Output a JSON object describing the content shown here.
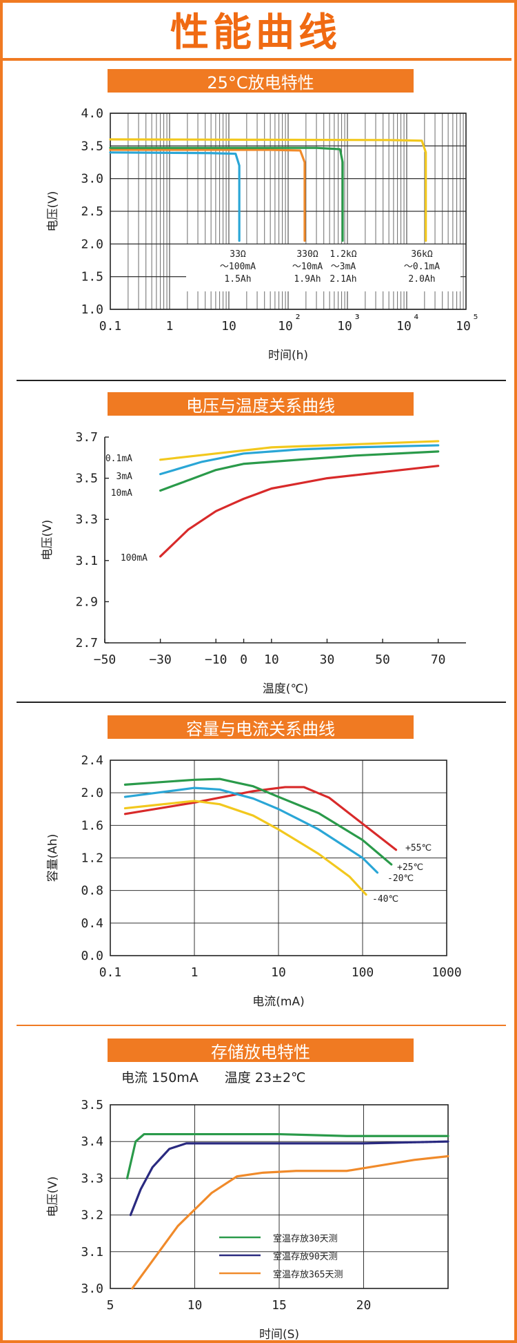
{
  "page": {
    "title": "性能曲线"
  },
  "chart_data": [
    {
      "type": "line",
      "title": "25°C放电特性",
      "xlabel": "时间(h)",
      "ylabel": "电压(V)",
      "xscale": "log",
      "xlim": [
        0.1,
        100000
      ],
      "ylim": [
        1.0,
        4.0
      ],
      "x_ticks": [
        "0.1",
        "1",
        "10",
        "10²",
        "10³",
        "10⁴",
        "10⁵"
      ],
      "y_ticks": [
        "1.0",
        "1.5",
        "2.0",
        "2.5",
        "3.0",
        "3.5",
        "4.0"
      ],
      "grid": true,
      "series": [
        {
          "color": "#2aa6d6",
          "x": [
            0.1,
            5,
            13,
            15,
            15
          ],
          "y": [
            3.4,
            3.39,
            3.38,
            3.2,
            2.05
          ]
        },
        {
          "color": "#f08a2a",
          "x": [
            0.1,
            50,
            160,
            190,
            190
          ],
          "y": [
            3.44,
            3.44,
            3.43,
            3.25,
            2.05
          ]
        },
        {
          "color": "#2a9a4a",
          "x": [
            0.1,
            300,
            750,
            830,
            830
          ],
          "y": [
            3.47,
            3.47,
            3.45,
            3.25,
            2.05
          ]
        },
        {
          "color": "#f2c81e",
          "x": [
            0.1,
            5000,
            18000,
            21000,
            21000
          ],
          "y": [
            3.6,
            3.59,
            3.58,
            3.4,
            2.05
          ]
        }
      ],
      "annotations": [
        {
          "lines": [
            "33Ω",
            "～100mA",
            "1.5Ah"
          ]
        },
        {
          "lines": [
            "330Ω",
            "～10mA",
            "1.9Ah"
          ]
        },
        {
          "lines": [
            "1.2kΩ",
            "～3mA",
            "2.1Ah"
          ]
        },
        {
          "lines": [
            "36kΩ",
            "～0.1mA",
            "2.0Ah"
          ]
        }
      ]
    },
    {
      "type": "line",
      "title": "电压与温度关系曲线",
      "xlabel": "温度(℃)",
      "ylabel": "电压(V)",
      "xlim": [
        -50,
        80
      ],
      "ylim": [
        2.7,
        3.7
      ],
      "x_ticks": [
        "−50",
        "−30",
        "−10",
        "0",
        "10",
        "30",
        "50",
        "70"
      ],
      "y_ticks": [
        "2.7",
        "2.9",
        "3.1",
        "3.3",
        "3.5",
        "3.7"
      ],
      "grid": false,
      "series": [
        {
          "name": "0.1mA",
          "color": "#f2c81e",
          "x": [
            -30,
            -10,
            10,
            30,
            50,
            70
          ],
          "y": [
            3.59,
            3.62,
            3.65,
            3.66,
            3.67,
            3.68
          ]
        },
        {
          "name": "3mA",
          "color": "#2aa6d6",
          "x": [
            -30,
            -15,
            0,
            20,
            40,
            70
          ],
          "y": [
            3.52,
            3.58,
            3.62,
            3.64,
            3.65,
            3.66
          ]
        },
        {
          "name": "10mA",
          "color": "#2a9a4a",
          "x": [
            -30,
            -20,
            -10,
            0,
            20,
            40,
            70
          ],
          "y": [
            3.44,
            3.49,
            3.54,
            3.57,
            3.59,
            3.61,
            3.63
          ]
        },
        {
          "name": "100mA",
          "color": "#d82a2a",
          "x": [
            -30,
            -20,
            -10,
            0,
            10,
            30,
            50,
            70
          ],
          "y": [
            3.12,
            3.25,
            3.34,
            3.4,
            3.45,
            3.5,
            3.53,
            3.56
          ]
        }
      ]
    },
    {
      "type": "line",
      "title": "容量与电流关系曲线",
      "xlabel": "电流(mA)",
      "ylabel": "容量(Ah)",
      "xscale": "log",
      "xlim": [
        0.1,
        1000
      ],
      "ylim": [
        0.0,
        2.4
      ],
      "x_ticks": [
        "0.1",
        "1",
        "10",
        "100",
        "1000"
      ],
      "y_ticks": [
        "0.0",
        "0.4",
        "0.8",
        "1.2",
        "1.6",
        "2.0",
        "2.4"
      ],
      "grid": true,
      "series": [
        {
          "name": "+55℃",
          "color": "#d82a2a",
          "x": [
            0.15,
            1,
            5,
            12,
            20,
            40,
            100,
            250
          ],
          "y": [
            1.74,
            1.88,
            2.02,
            2.07,
            2.07,
            1.94,
            1.62,
            1.3
          ]
        },
        {
          "name": "+25℃",
          "color": "#2a9a4a",
          "x": [
            0.15,
            1,
            2,
            5,
            10,
            30,
            100,
            220
          ],
          "y": [
            2.1,
            2.16,
            2.17,
            2.08,
            1.95,
            1.75,
            1.42,
            1.12
          ]
        },
        {
          "name": "-20℃",
          "color": "#2aa6d6",
          "x": [
            0.15,
            1,
            2,
            5,
            10,
            30,
            100,
            150
          ],
          "y": [
            1.95,
            2.06,
            2.04,
            1.93,
            1.8,
            1.55,
            1.2,
            1.02
          ]
        },
        {
          "name": "-40℃",
          "color": "#f2c81e",
          "x": [
            0.15,
            1,
            2,
            5,
            10,
            30,
            70,
            110
          ],
          "y": [
            1.81,
            1.9,
            1.86,
            1.72,
            1.55,
            1.25,
            0.97,
            0.75
          ]
        }
      ]
    },
    {
      "type": "line",
      "title": "存储放电特性",
      "subtitle": "电流 150mA　　温度 23±2℃",
      "xlabel": "时间(S)",
      "ylabel": "电压(V)",
      "xlim": [
        5,
        25
      ],
      "ylim": [
        3.0,
        3.5
      ],
      "x_ticks": [
        "5",
        "10",
        "15",
        "20"
      ],
      "y_ticks": [
        "3.0",
        "3.1",
        "3.2",
        "3.3",
        "3.4",
        "3.5"
      ],
      "grid": true,
      "legend": "bottom-center",
      "series": [
        {
          "name": "室温存放30天测",
          "color": "#2a9a4a",
          "x": [
            6,
            6.5,
            7,
            10,
            15,
            19,
            20,
            25
          ],
          "y": [
            3.3,
            3.4,
            3.42,
            3.42,
            3.42,
            3.415,
            3.415,
            3.415
          ]
        },
        {
          "name": "室温存放90天测",
          "color": "#2a2a80",
          "x": [
            6.2,
            6.8,
            7.5,
            8.5,
            9.5,
            12,
            15,
            20,
            25
          ],
          "y": [
            3.2,
            3.27,
            3.33,
            3.38,
            3.395,
            3.395,
            3.395,
            3.395,
            3.4
          ]
        },
        {
          "name": "室温存放365天测",
          "color": "#f08a2a",
          "x": [
            6.3,
            9,
            11,
            12.5,
            14,
            16,
            19,
            21,
            23,
            25
          ],
          "y": [
            3.0,
            3.17,
            3.26,
            3.305,
            3.315,
            3.32,
            3.32,
            3.335,
            3.35,
            3.36
          ]
        }
      ]
    }
  ]
}
